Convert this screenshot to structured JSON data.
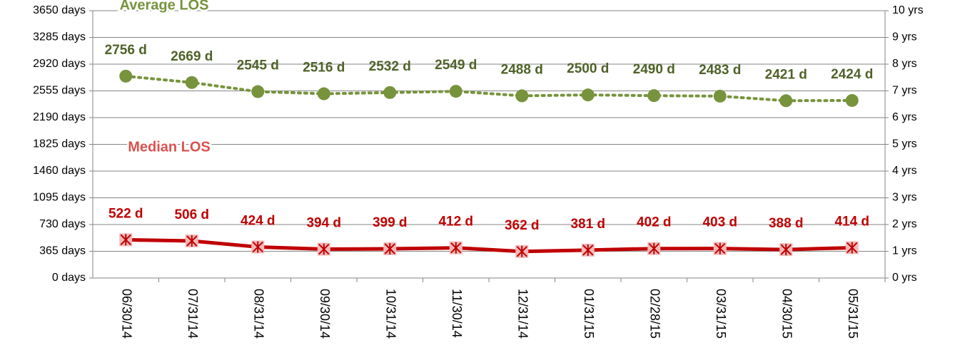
{
  "chart_data": {
    "type": "line",
    "categories": [
      "06/30/14",
      "07/31/14",
      "08/31/14",
      "09/30/14",
      "10/31/14",
      "11/30/14",
      "12/31/14",
      "01/31/15",
      "02/28/15",
      "03/31/15",
      "04/30/15",
      "05/31/15"
    ],
    "series": [
      {
        "name": "Average LOS",
        "color": "#77933c",
        "style": "dotted",
        "marker": "circle",
        "values": [
          2756,
          2669,
          2545,
          2516,
          2532,
          2549,
          2488,
          2500,
          2490,
          2483,
          2421,
          2424
        ],
        "value_labels": [
          "2756 d",
          "2669 d",
          "2545 d",
          "2516 d",
          "2532 d",
          "2549 d",
          "2488 d",
          "2500 d",
          "2490 d",
          "2483 d",
          "2421 d",
          "2424 d"
        ],
        "label_color": "#4f6228"
      },
      {
        "name": "Median LOS",
        "color": "#c00000",
        "style": "solid",
        "marker": "star",
        "values": [
          522,
          506,
          424,
          394,
          399,
          412,
          362,
          381,
          402,
          403,
          388,
          414
        ],
        "value_labels": [
          "522 d",
          "506 d",
          "424 d",
          "394 d",
          "399 d",
          "412 d",
          "362 d",
          "381 d",
          "402 d",
          "403 d",
          "388 d",
          "414 d"
        ],
        "label_color": "#c00000"
      }
    ],
    "ylim": [
      0,
      3650
    ],
    "yticks": [
      {
        "value": 0,
        "label": "0 days"
      },
      {
        "value": 365,
        "label": "365 days"
      },
      {
        "value": 730,
        "label": "730 days"
      },
      {
        "value": 1095,
        "label": "1095 days"
      },
      {
        "value": 1460,
        "label": "1460 days"
      },
      {
        "value": 1825,
        "label": "1825 days"
      },
      {
        "value": 2190,
        "label": "2190 days"
      },
      {
        "value": 2555,
        "label": "2555 days"
      },
      {
        "value": 2920,
        "label": "2920 days"
      },
      {
        "value": 3285,
        "label": "3285 days"
      },
      {
        "value": 3650,
        "label": "3650 days"
      }
    ],
    "y2lim": [
      0,
      10
    ],
    "y2ticks": [
      {
        "value": 0,
        "label": "0 yrs"
      },
      {
        "value": 1,
        "label": "1 yrs"
      },
      {
        "value": 2,
        "label": "2 yrs"
      },
      {
        "value": 3,
        "label": "3 yrs"
      },
      {
        "value": 4,
        "label": "4 yrs"
      },
      {
        "value": 5,
        "label": "5 yrs"
      },
      {
        "value": 6,
        "label": "6 yrs"
      },
      {
        "value": 7,
        "label": "7 yrs"
      },
      {
        "value": 8,
        "label": "8 yrs"
      },
      {
        "value": 9,
        "label": "9 yrs"
      },
      {
        "value": 10,
        "label": "10 yrs"
      }
    ],
    "grid": true
  }
}
